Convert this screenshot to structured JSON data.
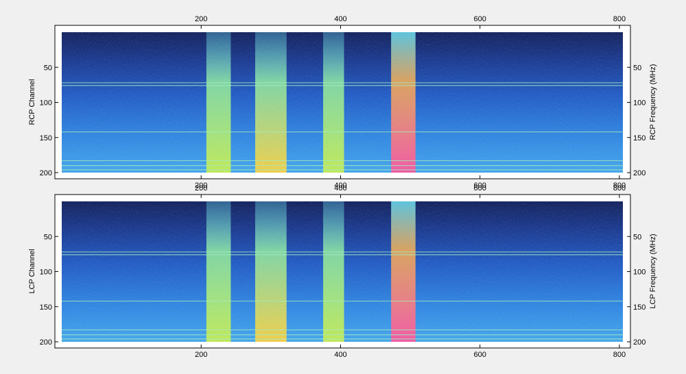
{
  "chart_data": [
    {
      "type": "heatmap",
      "panel": "top",
      "ylabel_left": "RCP  Channel",
      "ylabel_right": "RCP  Frequency (MHz)",
      "x_ticks": [
        200,
        400,
        600,
        800
      ],
      "y_ticks": [
        50,
        100,
        150,
        200
      ],
      "xlim": [
        0,
        805
      ],
      "ylim": [
        200,
        0
      ],
      "colormap": "jet-like (dark blue → cyan → yellow → red/magenta)",
      "bright_bands_x": [
        {
          "center": 490,
          "width": 35,
          "level": "highest"
        },
        {
          "center": 300,
          "width": 45,
          "level": "high"
        },
        {
          "center": 390,
          "width": 30,
          "level": "medium"
        },
        {
          "center": 225,
          "width": 35,
          "level": "medium"
        }
      ],
      "horizontal_lines_y": [
        72,
        76,
        142,
        183,
        190,
        196
      ]
    },
    {
      "type": "heatmap",
      "panel": "bottom",
      "ylabel_left": "LCP  Channel",
      "ylabel_right": "LCP  Frequency (MHz)",
      "x_ticks": [
        200,
        400,
        600,
        800
      ],
      "y_ticks": [
        50,
        100,
        150,
        200
      ],
      "xlim": [
        0,
        805
      ],
      "ylim": [
        200,
        0
      ],
      "colormap": "jet-like (dark blue → cyan → yellow → red/magenta)",
      "bright_bands_x": [
        {
          "center": 490,
          "width": 35,
          "level": "highest"
        },
        {
          "center": 300,
          "width": 45,
          "level": "high"
        },
        {
          "center": 390,
          "width": 30,
          "level": "medium"
        },
        {
          "center": 225,
          "width": 35,
          "level": "medium"
        }
      ],
      "horizontal_lines_y": [
        72,
        76,
        142,
        183,
        190,
        196
      ]
    }
  ]
}
